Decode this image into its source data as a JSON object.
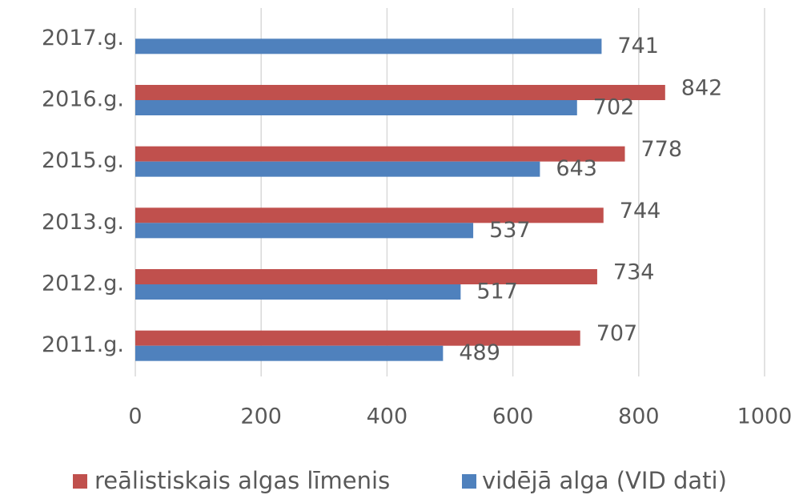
{
  "chart_data": {
    "type": "hbar",
    "categories": [
      "2011.g.",
      "2012.g.",
      "2013.g.",
      "2015.g.",
      "2016.g.",
      "2017.g."
    ],
    "series": [
      {
        "name": "reālistiskais algas līmenis",
        "color": "#c0504d",
        "values": [
          707,
          734,
          744,
          778,
          842,
          null
        ]
      },
      {
        "name": "vidējā alga (VID dati)",
        "color": "#4f81bd",
        "values": [
          489,
          517,
          537,
          643,
          702,
          741
        ]
      }
    ],
    "xlim": [
      0,
      1000
    ],
    "xticks": [
      0,
      200,
      400,
      600,
      800,
      1000
    ],
    "grid": true,
    "legend": "bottom"
  }
}
